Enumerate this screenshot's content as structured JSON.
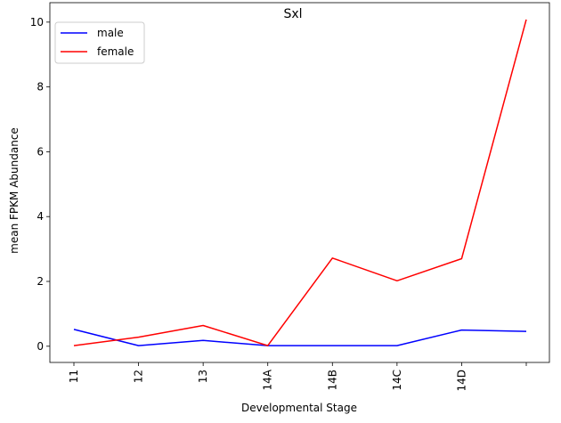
{
  "chart_data": {
    "type": "line",
    "title": "Sxl",
    "xlabel": "Developmental Stage",
    "ylabel": "mean FPKM Abundance",
    "categories": [
      "11",
      "12",
      "13",
      "14A",
      "14B",
      "14C",
      "14D",
      ""
    ],
    "ylim": [
      -0.5,
      10.6
    ],
    "yticks": [
      0,
      2,
      4,
      6,
      8,
      10
    ],
    "grid": false,
    "legend_position": "top-left",
    "series": [
      {
        "name": "male",
        "color": "#0000ff",
        "values": [
          0.52,
          0.02,
          0.18,
          0.02,
          0.02,
          0.02,
          0.5,
          0.46
        ]
      },
      {
        "name": "female",
        "color": "#ff0000",
        "values": [
          0.02,
          0.28,
          0.64,
          0.02,
          2.72,
          2.02,
          2.7,
          10.08
        ]
      }
    ]
  }
}
